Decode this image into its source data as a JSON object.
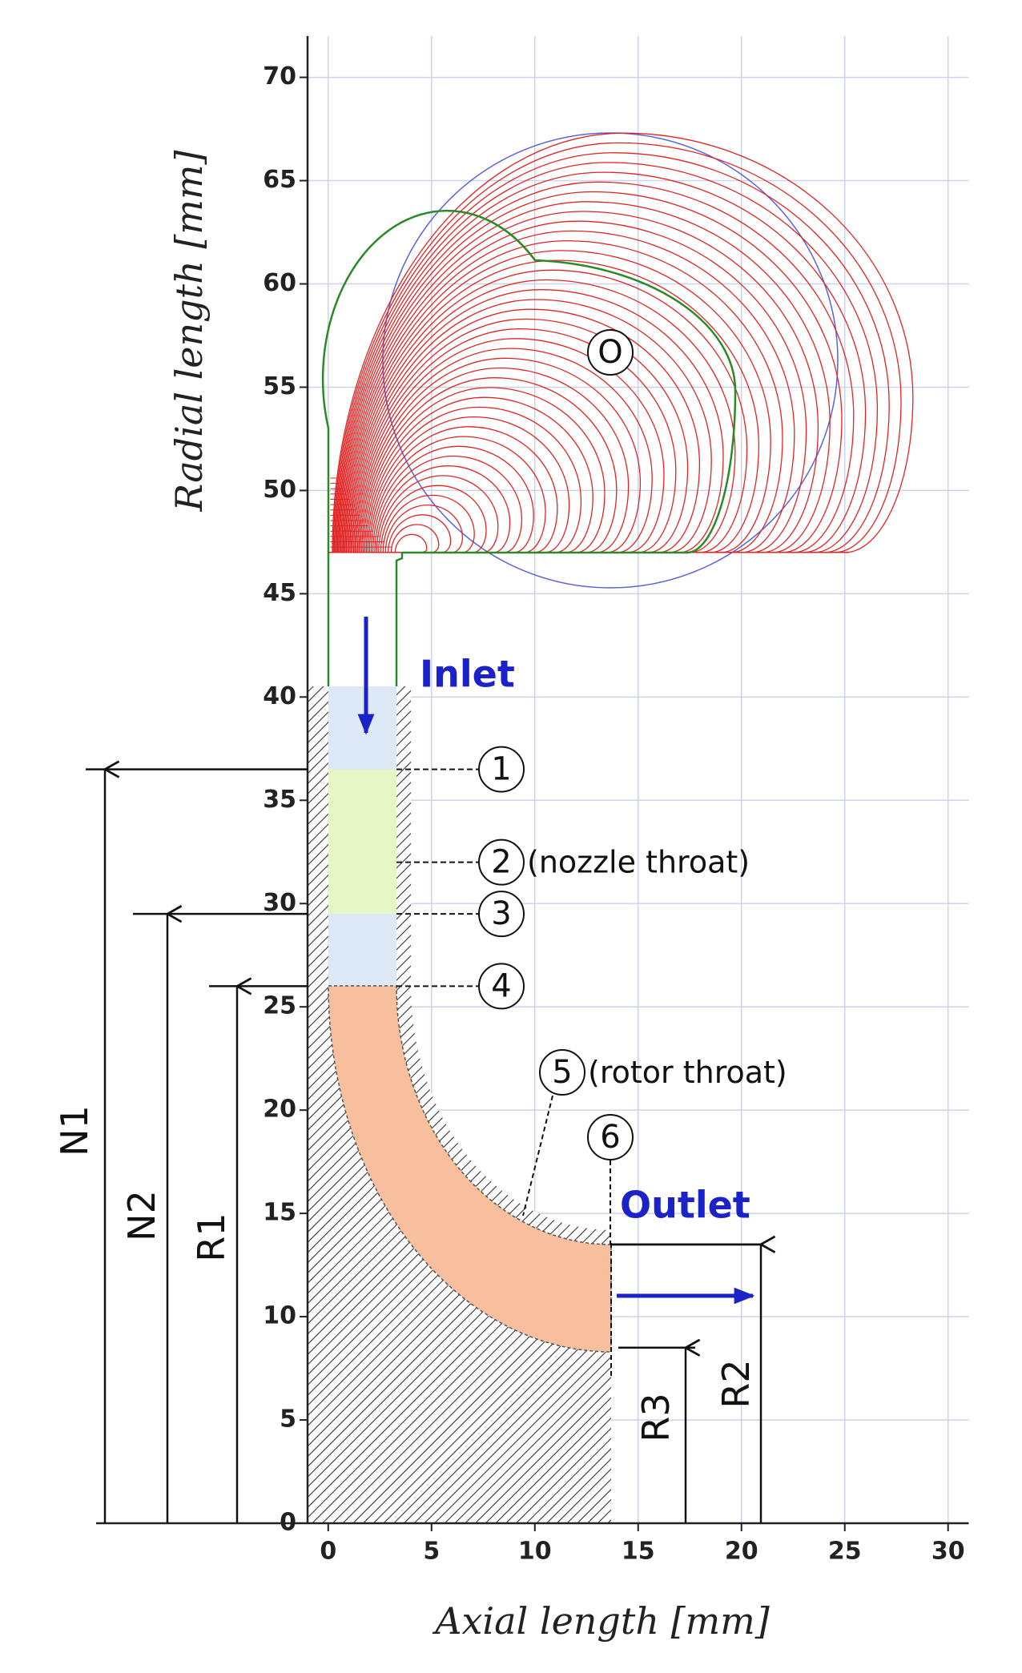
{
  "chart_data": {
    "type": "geometry",
    "xlabel": "Axial length [mm]",
    "ylabel": "Radial length [mm]",
    "xlim": [
      -1,
      31
    ],
    "ylim": [
      0,
      72
    ],
    "xticks": [
      0,
      5,
      10,
      15,
      20,
      25,
      30
    ],
    "yticks": [
      0,
      5,
      10,
      15,
      20,
      25,
      30,
      35,
      40,
      45,
      50,
      55,
      60,
      65,
      70
    ],
    "grid": true,
    "inlet_label": "Inlet",
    "outlet_label": "Outlet",
    "center_label": "O",
    "stations": [
      {
        "label": "1",
        "y": 36.5
      },
      {
        "label": "2",
        "y": 32,
        "note": "(nozzle throat)"
      },
      {
        "label": "3",
        "y": 29.5
      },
      {
        "label": "4",
        "y": 26
      },
      {
        "label": "5",
        "note": "(rotor throat)"
      },
      {
        "label": "6"
      }
    ],
    "dimensions": [
      {
        "label": "N1",
        "value": 36.5
      },
      {
        "label": "N2",
        "value": 29.5
      },
      {
        "label": "R1",
        "value": 26
      },
      {
        "label": "R2",
        "value": 13.5
      },
      {
        "label": "R3",
        "value": 8.5
      }
    ]
  }
}
